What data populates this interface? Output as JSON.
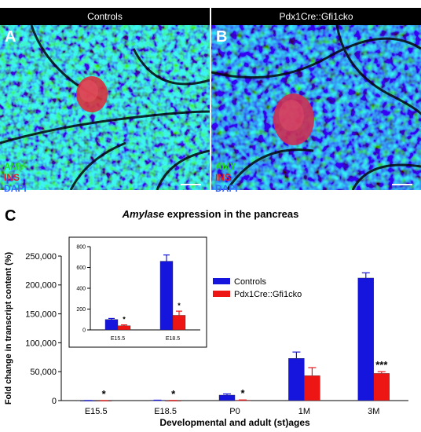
{
  "panels": [
    {
      "letter": "A",
      "header": "Controls",
      "stains": [
        {
          "name": "AMY",
          "color": "#22dd22"
        },
        {
          "name": "INS",
          "color": "#e52020"
        },
        {
          "name": "DAPI",
          "color": "#3a6bff"
        }
      ]
    },
    {
      "letter": "B",
      "header": "Pdx1Cre::Gfi1cko",
      "stains": [
        {
          "name": "AMY",
          "color": "#22dd22"
        },
        {
          "name": "INS",
          "color": "#e52020"
        },
        {
          "name": "DAPI",
          "color": "#3a6bff"
        }
      ]
    }
  ],
  "panel_c": {
    "letter": "C",
    "title_gene": "Amylase",
    "title_rest": " expression in the pancreas"
  },
  "colors": {
    "controls": "#1515dd",
    "mutant": "#ee1515"
  },
  "chart_data": [
    {
      "type": "bar",
      "title": "Amylase expression in the pancreas",
      "xlabel": "Developmental and adult (st)ages",
      "ylabel": "Fold change in transcript content (%)",
      "categories": [
        "E15.5",
        "E18.5",
        "P0",
        "1M",
        "3M"
      ],
      "ylim": [
        0,
        250000
      ],
      "yticks": [
        0,
        50000,
        100000,
        150000,
        200000,
        250000
      ],
      "ytick_labels": [
        "0",
        "50,000",
        "100,000",
        "150,000",
        "200,000",
        "250,000"
      ],
      "series": [
        {
          "name": "Controls",
          "values": [
            100,
            660,
            9500,
            73000,
            212000
          ],
          "errors": [
            10,
            60,
            2000,
            11000,
            9000
          ]
        },
        {
          "name": "Pdx1Cre::Gfi1cko",
          "values": [
            40,
            140,
            700,
            43000,
            47000
          ],
          "errors": [
            8,
            40,
            400,
            14000,
            3000
          ]
        }
      ],
      "annotations": [
        "*",
        "*",
        "*",
        "",
        "***"
      ],
      "legend_position": "top-right",
      "grid": false
    },
    {
      "type": "bar",
      "categories": [
        "E15.5",
        "E18.5"
      ],
      "ylim": [
        0,
        800
      ],
      "yticks": [
        0,
        200,
        400,
        600,
        800
      ],
      "ytick_labels": [
        "0",
        "200",
        "400",
        "600",
        "800"
      ],
      "series": [
        {
          "name": "Controls",
          "values": [
            100,
            660
          ],
          "errors": [
            10,
            60
          ]
        },
        {
          "name": "Pdx1Cre::Gfi1cko",
          "values": [
            40,
            140
          ],
          "errors": [
            8,
            40
          ]
        }
      ],
      "annotations": [
        "*",
        "*"
      ],
      "grid": false
    }
  ]
}
